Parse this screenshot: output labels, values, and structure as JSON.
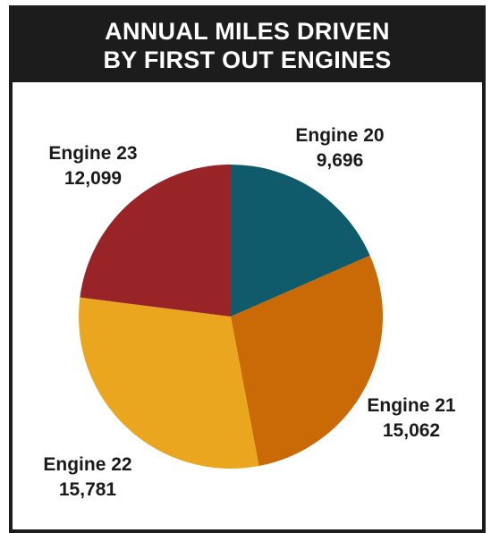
{
  "header": {
    "title_line1": "ANNUAL MILES DRIVEN",
    "title_line2": "BY FIRST OUT ENGINES"
  },
  "chart_data": {
    "type": "pie",
    "title": "ANNUAL MILES DRIVEN BY FIRST OUT ENGINES",
    "start_angle_deg": 0,
    "direction": "clockwise",
    "legend": "none",
    "slices": [
      {
        "label": "Engine 20",
        "value": 9696,
        "value_text": "9,696",
        "color": "#0f5a6b"
      },
      {
        "label": "Engine 21",
        "value": 15062,
        "value_text": "15,062",
        "color": "#c96a06"
      },
      {
        "label": "Engine 22",
        "value": 15781,
        "value_text": "15,781",
        "color": "#eaa61f"
      },
      {
        "label": "Engine 23",
        "value": 12099,
        "value_text": "12,099",
        "color": "#982428"
      }
    ]
  }
}
